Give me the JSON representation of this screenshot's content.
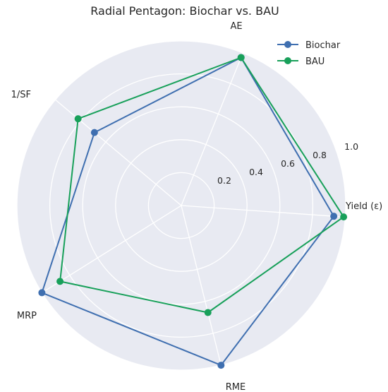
{
  "chart_data": {
    "type": "radar",
    "title": "Radial Pentagon: Biochar vs. BAU",
    "axes": [
      "Yield (ε)",
      "AE",
      "1/SF",
      "MRP",
      "RME"
    ],
    "rticks": [
      0.2,
      0.4,
      0.6,
      0.8,
      1.0
    ],
    "rtick_labels": [
      "0.2",
      "0.4",
      "0.6",
      "0.8",
      "1.0"
    ],
    "rlim": [
      0,
      1.0
    ],
    "grid": true,
    "legend_position": "top-right",
    "series": [
      {
        "name": "Biochar",
        "color": "#3f6fb0",
        "values": [
          0.93,
          0.97,
          0.69,
          1.0,
          1.0
        ]
      },
      {
        "name": "BAU",
        "color": "#18a05a",
        "values": [
          0.99,
          0.97,
          0.82,
          0.87,
          0.67
        ]
      }
    ]
  }
}
